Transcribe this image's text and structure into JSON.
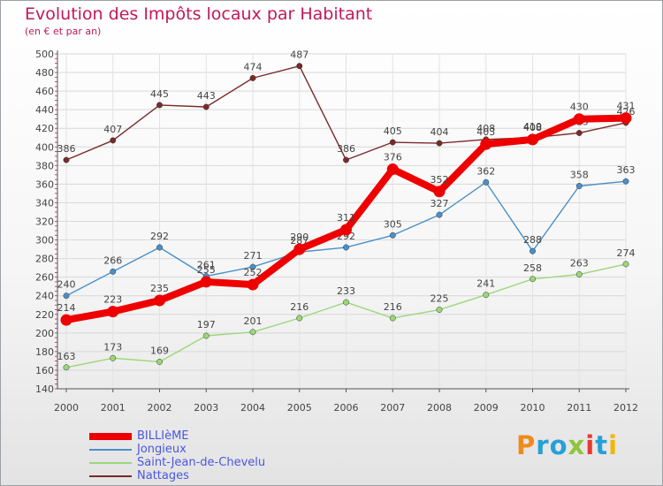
{
  "title": "Evolution des Impôts locaux par Habitant",
  "subtitle": "(en € et par an)",
  "logo_letters": [
    {
      "ch": "P",
      "color": "#f08a1c"
    },
    {
      "ch": "r",
      "color": "#27a0d8"
    },
    {
      "ch": "o",
      "color": "#27a0d8"
    },
    {
      "ch": "x",
      "color": "#8fc53d"
    },
    {
      "ch": "i",
      "color": "#e8392e"
    },
    {
      "ch": "t",
      "color": "#27a0d8"
    },
    {
      "ch": "i",
      "color": "#f2b705"
    }
  ],
  "chart_data": {
    "type": "line",
    "title": "Evolution des Impôts locaux par Habitant",
    "subtitle": "(en € et par an)",
    "xlabel": "",
    "ylabel": "",
    "x": [
      "2000",
      "2001",
      "2002",
      "2003",
      "2004",
      "2005",
      "2006",
      "2007",
      "2008",
      "2009",
      "2010",
      "2011",
      "2012"
    ],
    "ylim": [
      140,
      500
    ],
    "yticks": [
      140,
      160,
      180,
      200,
      220,
      240,
      260,
      280,
      300,
      320,
      340,
      360,
      380,
      400,
      420,
      440,
      460,
      480,
      500
    ],
    "grid": true,
    "legend_position": "bottom-left",
    "series": [
      {
        "name": "Nattages",
        "color": "#7a2a2a",
        "values": [
          386,
          407,
          445,
          443,
          474,
          487,
          386,
          405,
          404,
          408,
          410,
          415,
          426
        ]
      },
      {
        "name": "Jongieux",
        "color": "#4a90c8",
        "values": [
          240,
          266,
          292,
          261,
          271,
          287,
          292,
          305,
          327,
          362,
          288,
          358,
          363
        ]
      },
      {
        "name": "Saint-Jean-de-Chevelu",
        "color": "#9bd77a",
        "values": [
          163,
          173,
          169,
          197,
          201,
          216,
          233,
          216,
          225,
          241,
          258,
          263,
          274
        ]
      },
      {
        "name": "BILLIèME",
        "color": "#ee0000",
        "values": [
          214,
          223,
          235,
          255,
          252,
          290,
          311,
          376,
          352,
          403,
          408,
          430,
          431
        ]
      }
    ],
    "legend_order": [
      "BILLIèME",
      "Jongieux",
      "Saint-Jean-de-Chevelu",
      "Nattages"
    ]
  }
}
